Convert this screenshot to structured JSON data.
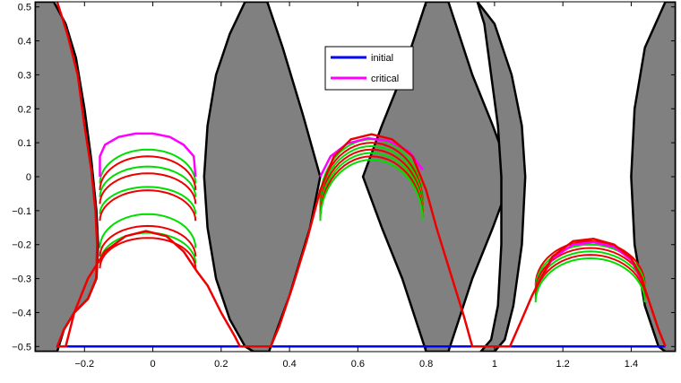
{
  "chart_data": {
    "type": "line",
    "title": "",
    "xlabel": "",
    "ylabel": "",
    "xlim": [
      -0.345,
      1.53
    ],
    "ylim": [
      -0.515,
      0.515
    ],
    "xticks": [
      -0.2,
      0,
      0.2,
      0.4,
      0.6,
      0.8,
      1,
      1.2,
      1.4
    ],
    "xtick_labels": [
      "−0.2",
      "0",
      "0.2",
      "0.4",
      "0.6",
      "0.8",
      "1",
      "1.2",
      "1.4"
    ],
    "yticks": [
      -0.5,
      -0.4,
      -0.3,
      -0.2,
      -0.1,
      0,
      0.1,
      0.2,
      0.3,
      0.4,
      0.5
    ],
    "ytick_labels": [
      "−0.5",
      "−0.4",
      "−0.3",
      "−0.2",
      "−0.1",
      "0",
      "0.1",
      "0.2",
      "0.3",
      "0.4",
      "0.5"
    ],
    "grid": false,
    "legend_position": "top-center",
    "legend": [
      {
        "label": "initial",
        "color": "#0000ff"
      },
      {
        "label": "critical",
        "color": "#ff00ff"
      }
    ],
    "colors": {
      "initial": "#0000ff",
      "critical": "#ff00ff",
      "intermediate_green": "#00dd00",
      "intermediate_red": "#ee0000",
      "obstacle_fill": "#808080",
      "obstacle_edge": "#000000"
    },
    "obstacles": [
      {
        "points": [
          [
            -0.345,
            0.515
          ],
          [
            -0.29,
            0.515
          ],
          [
            -0.255,
            0.45
          ],
          [
            -0.225,
            0.35
          ],
          [
            -0.2,
            0.2
          ],
          [
            -0.18,
            0.05
          ],
          [
            -0.165,
            -0.1
          ],
          [
            -0.16,
            -0.2
          ],
          [
            -0.165,
            -0.3
          ],
          [
            -0.19,
            -0.36
          ],
          [
            -0.23,
            -0.4
          ],
          [
            -0.26,
            -0.45
          ],
          [
            -0.28,
            -0.515
          ],
          [
            -0.345,
            -0.515
          ]
        ]
      },
      {
        "points": [
          [
            0.27,
            0.515
          ],
          [
            0.225,
            0.42
          ],
          [
            0.185,
            0.3
          ],
          [
            0.16,
            0.15
          ],
          [
            0.15,
            0
          ],
          [
            0.16,
            -0.15
          ],
          [
            0.185,
            -0.3
          ],
          [
            0.225,
            -0.42
          ],
          [
            0.27,
            -0.5
          ],
          [
            0.295,
            -0.515
          ],
          [
            0.34,
            -0.515
          ],
          [
            0.4,
            -0.35
          ],
          [
            0.46,
            -0.15
          ],
          [
            0.49,
            0
          ],
          [
            0.44,
            0.18
          ],
          [
            0.38,
            0.38
          ],
          [
            0.335,
            0.515
          ]
        ]
      },
      {
        "points": [
          [
            0.8,
            0.515
          ],
          [
            0.73,
            0.3
          ],
          [
            0.67,
            0.15
          ],
          [
            0.615,
            0
          ],
          [
            0.67,
            -0.15
          ],
          [
            0.73,
            -0.3
          ],
          [
            0.8,
            -0.515
          ],
          [
            0.865,
            -0.515
          ],
          [
            0.935,
            -0.3
          ],
          [
            0.995,
            -0.15
          ],
          [
            1.05,
            0
          ],
          [
            0.995,
            0.15
          ],
          [
            0.935,
            0.3
          ],
          [
            0.865,
            0.515
          ]
        ]
      },
      {
        "points": [
          [
            0.95,
            0.515
          ],
          [
            1.0,
            0.45
          ],
          [
            1.05,
            0.3
          ],
          [
            1.08,
            0.15
          ],
          [
            1.09,
            0
          ],
          [
            1.08,
            -0.2
          ],
          [
            1.055,
            -0.38
          ],
          [
            1.03,
            -0.48
          ],
          [
            1.0,
            -0.515
          ],
          [
            0.96,
            -0.515
          ],
          [
            0.99,
            -0.48
          ],
          [
            1.01,
            -0.38
          ],
          [
            1.02,
            -0.2
          ],
          [
            1.02,
            0
          ],
          [
            1.01,
            0.15
          ],
          [
            0.99,
            0.3
          ],
          [
            0.97,
            0.45
          ]
        ]
      },
      {
        "points": [
          [
            1.53,
            0.515
          ],
          [
            1.5,
            0.515
          ],
          [
            1.44,
            0.38
          ],
          [
            1.41,
            0.2
          ],
          [
            1.4,
            0
          ],
          [
            1.41,
            -0.2
          ],
          [
            1.44,
            -0.38
          ],
          [
            1.48,
            -0.5
          ],
          [
            1.5,
            -0.515
          ],
          [
            1.53,
            -0.515
          ]
        ]
      }
    ],
    "series": [
      {
        "name": "initial",
        "color": "#0000ff",
        "segments": [
          [
            [
              -0.28,
              -0.5
            ],
            [
              0.255,
              -0.5
            ]
          ],
          [
            [
              0.345,
              -0.5
            ],
            [
              0.935,
              -0.5
            ]
          ],
          [
            [
              1.045,
              -0.5
            ],
            [
              1.5,
              -0.5
            ]
          ]
        ]
      },
      {
        "name": "critical",
        "color": "#ff00ff",
        "segments": [
          [
            [
              -0.155,
              0
            ],
            [
              -0.155,
              0.06
            ],
            [
              -0.14,
              0.094
            ],
            [
              -0.1,
              0.117
            ],
            [
              -0.05,
              0.127
            ],
            [
              0,
              0.127
            ],
            [
              0.05,
              0.117
            ],
            [
              0.09,
              0.094
            ],
            [
              0.12,
              0.06
            ],
            [
              0.125,
              0
            ]
          ],
          [
            [
              0.49,
              0
            ],
            [
              0.52,
              0.06
            ],
            [
              0.57,
              0.098
            ],
            [
              0.63,
              0.113
            ],
            [
              0.69,
              0.105
            ],
            [
              0.75,
              0.074
            ],
            [
              0.79,
              0.02
            ]
          ],
          [
            [
              1.13,
              -0.31
            ],
            [
              1.17,
              -0.24
            ],
            [
              1.23,
              -0.2
            ],
            [
              1.29,
              -0.193
            ],
            [
              1.35,
              -0.207
            ],
            [
              1.4,
              -0.245
            ],
            [
              1.43,
              -0.305
            ]
          ]
        ]
      }
    ],
    "intermediate_arcs": [
      {
        "cx": -0.015,
        "cy": -0.02,
        "rx": 0.14,
        "ry": 0.1,
        "color": "#00dd00"
      },
      {
        "cx": -0.015,
        "cy": -0.04,
        "rx": 0.14,
        "ry": 0.1,
        "color": "#ee0000"
      },
      {
        "cx": -0.015,
        "cy": -0.06,
        "rx": 0.14,
        "ry": 0.09,
        "color": "#00dd00"
      },
      {
        "cx": -0.015,
        "cy": -0.08,
        "rx": 0.14,
        "ry": 0.09,
        "color": "#ee0000"
      },
      {
        "cx": -0.015,
        "cy": -0.11,
        "rx": 0.14,
        "ry": 0.08,
        "color": "#00dd00"
      },
      {
        "cx": -0.015,
        "cy": -0.13,
        "rx": 0.14,
        "ry": 0.09,
        "color": "#ee0000"
      },
      {
        "cx": -0.015,
        "cy": -0.21,
        "rx": 0.14,
        "ry": 0.1,
        "color": "#00dd00"
      },
      {
        "cx": -0.015,
        "cy": -0.235,
        "rx": 0.14,
        "ry": 0.09,
        "color": "#ee0000"
      },
      {
        "cx": -0.015,
        "cy": -0.255,
        "rx": 0.14,
        "ry": 0.09,
        "color": "#00dd00"
      },
      {
        "cx": -0.015,
        "cy": -0.27,
        "rx": 0.14,
        "ry": 0.09,
        "color": "#ee0000"
      },
      {
        "cx": 0.64,
        "cy": -0.07,
        "rx": 0.15,
        "ry": 0.18,
        "color": "#00dd00"
      },
      {
        "cx": 0.64,
        "cy": -0.08,
        "rx": 0.15,
        "ry": 0.18,
        "color": "#ee0000"
      },
      {
        "cx": 0.64,
        "cy": -0.09,
        "rx": 0.15,
        "ry": 0.18,
        "color": "#00dd00"
      },
      {
        "cx": 0.64,
        "cy": -0.1,
        "rx": 0.15,
        "ry": 0.18,
        "color": "#ee0000"
      },
      {
        "cx": 0.64,
        "cy": -0.11,
        "rx": 0.15,
        "ry": 0.18,
        "color": "#00dd00"
      },
      {
        "cx": 0.64,
        "cy": -0.12,
        "rx": 0.15,
        "ry": 0.18,
        "color": "#ee0000"
      },
      {
        "cx": 0.64,
        "cy": -0.13,
        "rx": 0.15,
        "ry": 0.18,
        "color": "#00dd00"
      },
      {
        "cx": 1.28,
        "cy": -0.32,
        "rx": 0.16,
        "ry": 0.13,
        "color": "#ee0000"
      },
      {
        "cx": 1.28,
        "cy": -0.33,
        "rx": 0.16,
        "ry": 0.13,
        "color": "#00dd00"
      },
      {
        "cx": 1.28,
        "cy": -0.34,
        "rx": 0.16,
        "ry": 0.13,
        "color": "#ee0000"
      },
      {
        "cx": 1.28,
        "cy": -0.35,
        "rx": 0.16,
        "ry": 0.13,
        "color": "#00dd00"
      },
      {
        "cx": 1.28,
        "cy": -0.36,
        "rx": 0.16,
        "ry": 0.13,
        "color": "#ee0000"
      },
      {
        "cx": 1.28,
        "cy": -0.37,
        "rx": 0.16,
        "ry": 0.13,
        "color": "#00dd00"
      }
    ],
    "final_curve": {
      "color": "#ee0000",
      "points": [
        [
          -0.28,
          0.515
        ],
        [
          -0.25,
          0.42
        ],
        [
          -0.22,
          0.3
        ],
        [
          -0.2,
          0.15
        ],
        [
          -0.18,
          0.02
        ],
        [
          -0.168,
          -0.1
        ],
        [
          -0.163,
          -0.2
        ],
        [
          -0.166,
          -0.3
        ],
        [
          -0.19,
          -0.36
        ],
        [
          -0.23,
          -0.4
        ],
        [
          -0.26,
          -0.45
        ],
        [
          -0.28,
          -0.5
        ],
        [
          -0.255,
          -0.5
        ],
        [
          -0.23,
          -0.4
        ],
        [
          -0.19,
          -0.3
        ],
        [
          -0.14,
          -0.22
        ],
        [
          -0.08,
          -0.175
        ],
        [
          -0.02,
          -0.16
        ],
        [
          0.04,
          -0.175
        ],
        [
          0.09,
          -0.22
        ],
        [
          0.13,
          -0.28
        ],
        [
          0.16,
          -0.32
        ],
        [
          0.2,
          -0.4
        ],
        [
          0.24,
          -0.47
        ],
        [
          0.255,
          -0.5
        ],
        [
          0.345,
          -0.5
        ],
        [
          0.37,
          -0.44
        ],
        [
          0.41,
          -0.32
        ],
        [
          0.45,
          -0.19
        ],
        [
          0.49,
          -0.04
        ],
        [
          0.53,
          0.06
        ],
        [
          0.58,
          0.11
        ],
        [
          0.64,
          0.125
        ],
        [
          0.7,
          0.11
        ],
        [
          0.76,
          0.06
        ],
        [
          0.8,
          -0.04
        ],
        [
          0.83,
          -0.15
        ],
        [
          0.87,
          -0.28
        ],
        [
          0.91,
          -0.41
        ],
        [
          0.935,
          -0.5
        ],
        [
          1.045,
          -0.5
        ],
        [
          1.08,
          -0.42
        ],
        [
          1.11,
          -0.35
        ],
        [
          1.13,
          -0.31
        ],
        [
          1.17,
          -0.235
        ],
        [
          1.23,
          -0.19
        ],
        [
          1.29,
          -0.183
        ],
        [
          1.35,
          -0.2
        ],
        [
          1.4,
          -0.24
        ],
        [
          1.43,
          -0.3
        ],
        [
          1.45,
          -0.36
        ],
        [
          1.48,
          -0.45
        ],
        [
          1.5,
          -0.5
        ]
      ]
    }
  }
}
